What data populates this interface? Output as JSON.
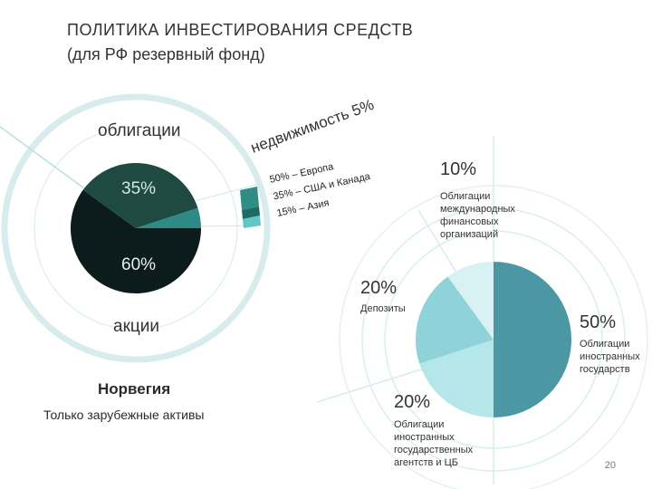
{
  "header": {
    "title": "ПОЛИТИКА ИНВЕСТИРОВАНИЯ СРЕДСТВ",
    "subtitle": "(для РФ резервный фонд)"
  },
  "colors": {
    "bonds": "#1f4a42",
    "stocks": "#0c1b1b",
    "real_estate": "#2e8a84",
    "ring": "#d8ecee",
    "dep_50": "#4b97a4",
    "dep_20a": "#8fd3d9",
    "dep_20b": "#b5e6ea",
    "dep_10": "#d8f2f3"
  },
  "norway": {
    "label": "Норвегия",
    "caption": "Только зарубежные активы",
    "bonds_label": "облигации",
    "stocks_label": "акции",
    "real_estate_title": "недвижимость 5%",
    "real_estate_breakdown": [
      "50% – Европа",
      "35% – США и Канада",
      "15% – Азия"
    ]
  },
  "russia": {
    "labels": [
      {
        "pct": "10%",
        "text": "Облигации международных финансовых организаций"
      },
      {
        "pct": "20%",
        "text": "Депозиты"
      },
      {
        "pct": "50%",
        "text": "Облигации иностранных государств"
      },
      {
        "pct": "20%",
        "text": "Облигации иностранных государственных агентств и ЦБ"
      }
    ]
  },
  "footer": {
    "page_number": "20"
  },
  "chart_data": [
    {
      "type": "pie",
      "title": "Норвегия",
      "categories": [
        "акции",
        "облигации",
        "недвижимость"
      ],
      "values": [
        60,
        35,
        5
      ],
      "labels": [
        "60%",
        "35%",
        "5%"
      ],
      "sub_breakdown": {
        "parent": "недвижимость",
        "categories": [
          "Европа",
          "США и Канада",
          "Азия"
        ],
        "values": [
          50,
          35,
          15
        ]
      }
    },
    {
      "type": "pie",
      "title": "",
      "categories": [
        "Облигации иностранных государств",
        "Облигации иностранных государственных агентств и ЦБ",
        "Депозиты",
        "Облигации международных финансовых организаций"
      ],
      "values": [
        50,
        20,
        20,
        10
      ]
    }
  ]
}
